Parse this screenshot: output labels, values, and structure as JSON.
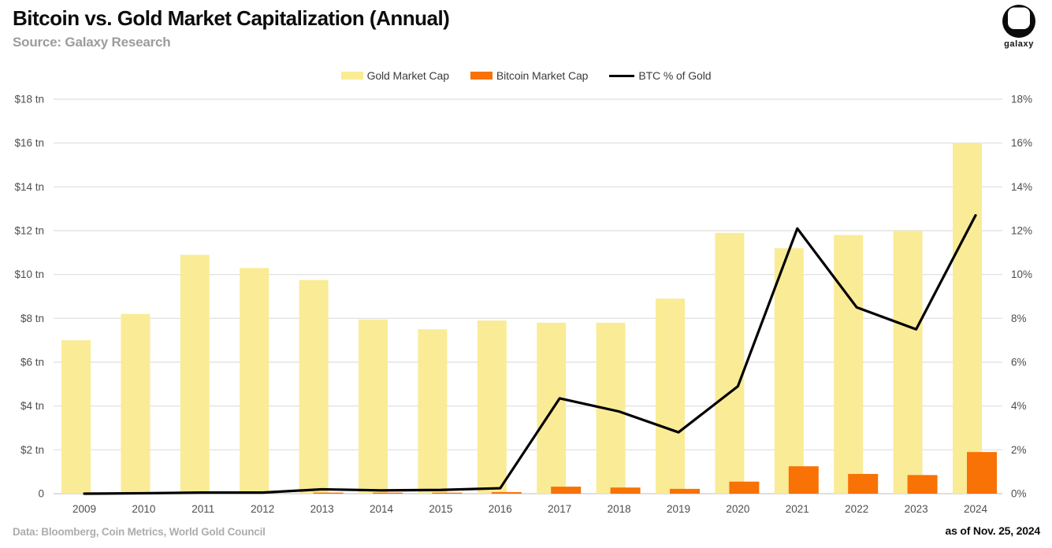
{
  "header": {
    "title": "Bitcoin vs. Gold Market Capitalization (Annual)",
    "subtitle": "Source: Galaxy Research",
    "logo_text": "galaxy"
  },
  "legend": [
    {
      "label": "Gold Market Cap",
      "type": "box",
      "color": "#FAEB96"
    },
    {
      "label": "Bitcoin Market Cap",
      "type": "box",
      "color": "#F87205"
    },
    {
      "label": "BTC % of Gold",
      "type": "line",
      "color": "#000000"
    }
  ],
  "footer": {
    "source": "Data: Bloomberg, Coin Metrics, World Gold Council",
    "as_of": "as of Nov. 25, 2024"
  },
  "chart_data": {
    "type": "bar",
    "title": "Bitcoin vs. Gold Market Capitalization (Annual)",
    "categories": [
      "2009",
      "2010",
      "2011",
      "2012",
      "2013",
      "2014",
      "2015",
      "2016",
      "2017",
      "2018",
      "2019",
      "2020",
      "2021",
      "2022",
      "2023",
      "2024"
    ],
    "series": [
      {
        "name": "Gold Market Cap",
        "type": "bar",
        "axis": "left",
        "unit": "$ tn",
        "color": "#FAEB96",
        "values": [
          7.0,
          8.2,
          10.9,
          10.3,
          9.75,
          7.95,
          7.5,
          7.9,
          7.8,
          7.8,
          8.9,
          11.9,
          11.2,
          11.8,
          12.0,
          16.0
        ]
      },
      {
        "name": "Bitcoin Market Cap",
        "type": "bar",
        "axis": "left",
        "unit": "$ tn",
        "color": "#F87205",
        "values": [
          0,
          0,
          0,
          0,
          0.05,
          0.04,
          0.04,
          0.07,
          0.32,
          0.28,
          0.22,
          0.55,
          1.25,
          0.9,
          0.85,
          1.9
        ]
      },
      {
        "name": "BTC % of Gold",
        "type": "line",
        "axis": "right",
        "unit": "%",
        "color": "#000000",
        "values": [
          0.0,
          0.02,
          0.05,
          0.05,
          0.2,
          0.15,
          0.17,
          0.25,
          4.35,
          3.75,
          2.8,
          4.9,
          12.1,
          8.5,
          7.5,
          12.7
        ]
      }
    ],
    "left_axis": {
      "label": "",
      "min": 0,
      "max": 18,
      "ticks": [
        "$18 tn",
        "$16 tn",
        "$14 tn",
        "$12 tn",
        "$10 tn",
        "$8 tn",
        "$6 tn",
        "$4 tn",
        "$2 tn",
        "0"
      ]
    },
    "right_axis": {
      "label": "",
      "min": 0,
      "max": 18,
      "ticks": [
        "18%",
        "16%",
        "14%",
        "12%",
        "10%",
        "8%",
        "6%",
        "4%",
        "2%",
        "0%"
      ]
    },
    "grid": true,
    "legend_position": "top"
  }
}
